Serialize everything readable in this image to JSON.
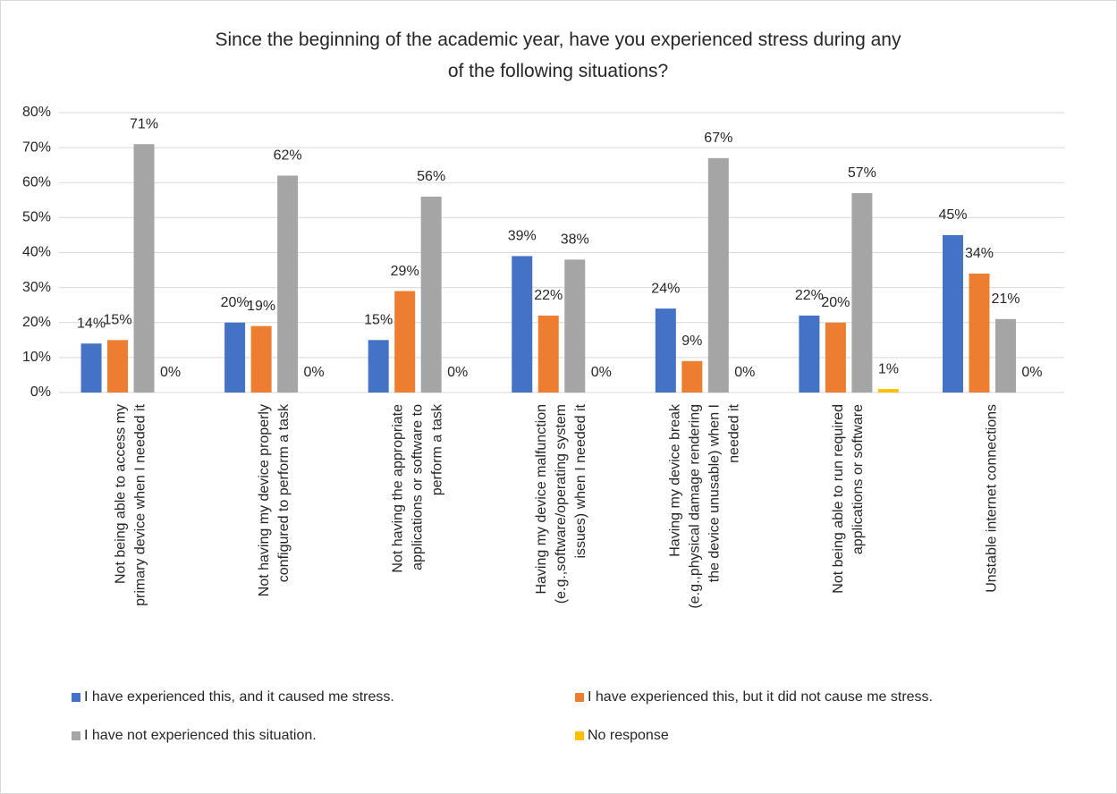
{
  "chart_data": {
    "type": "bar",
    "title": "Since the beginning of the academic year, have you experienced stress during any of the following situations?",
    "categories": [
      "Not being able to access my primary device when I needed it",
      "Not having my device properly configured to perform a task",
      "Not having the appropriate applications or software to perform a task",
      "Having my device malfunction (e.g.,software/operating system issues) when I needed it",
      "Having my device break (e.g.,physical damage rendering the device unusable) when I needed it",
      "Not being able to run required applications or software",
      "Unstable internet connections"
    ],
    "series": [
      {
        "name": "I have experienced this, and it caused me stress.",
        "color": "#4472c4",
        "values": [
          14,
          20,
          15,
          39,
          24,
          22,
          45
        ],
        "value_labels": [
          "14%",
          "20%",
          "15%",
          "39%",
          "24%",
          "22%",
          "45%"
        ]
      },
      {
        "name": "I have experienced this, but it did not cause me stress.",
        "color": "#ed7d31",
        "values": [
          15,
          19,
          29,
          22,
          9,
          20,
          34
        ],
        "value_labels": [
          "15%",
          "19%",
          "29%",
          "22%",
          "9%",
          "20%",
          "34%"
        ]
      },
      {
        "name": "I have not experienced this situation.",
        "color": "#a5a5a5",
        "values": [
          71,
          62,
          56,
          38,
          67,
          57,
          21
        ],
        "value_labels": [
          "71%",
          "62%",
          "56%",
          "38%",
          "67%",
          "57%",
          "21%"
        ]
      },
      {
        "name": "No response",
        "color": "#ffc000",
        "values": [
          0,
          0,
          0,
          0,
          0,
          1,
          0
        ],
        "value_labels": [
          "0%",
          "0%",
          "0%",
          "0%",
          "0%",
          "1%",
          "0%"
        ]
      }
    ],
    "ylim": [
      0,
      80
    ],
    "yticks": [
      {
        "value": 0,
        "label": "0%"
      },
      {
        "value": 10,
        "label": "10%"
      },
      {
        "value": 20,
        "label": "20%"
      },
      {
        "value": 30,
        "label": "30%"
      },
      {
        "value": 40,
        "label": "40%"
      },
      {
        "value": 50,
        "label": "50%"
      },
      {
        "value": 60,
        "label": "60%"
      },
      {
        "value": 70,
        "label": "70%"
      },
      {
        "value": 80,
        "label": "80%"
      }
    ],
    "grid": true
  }
}
